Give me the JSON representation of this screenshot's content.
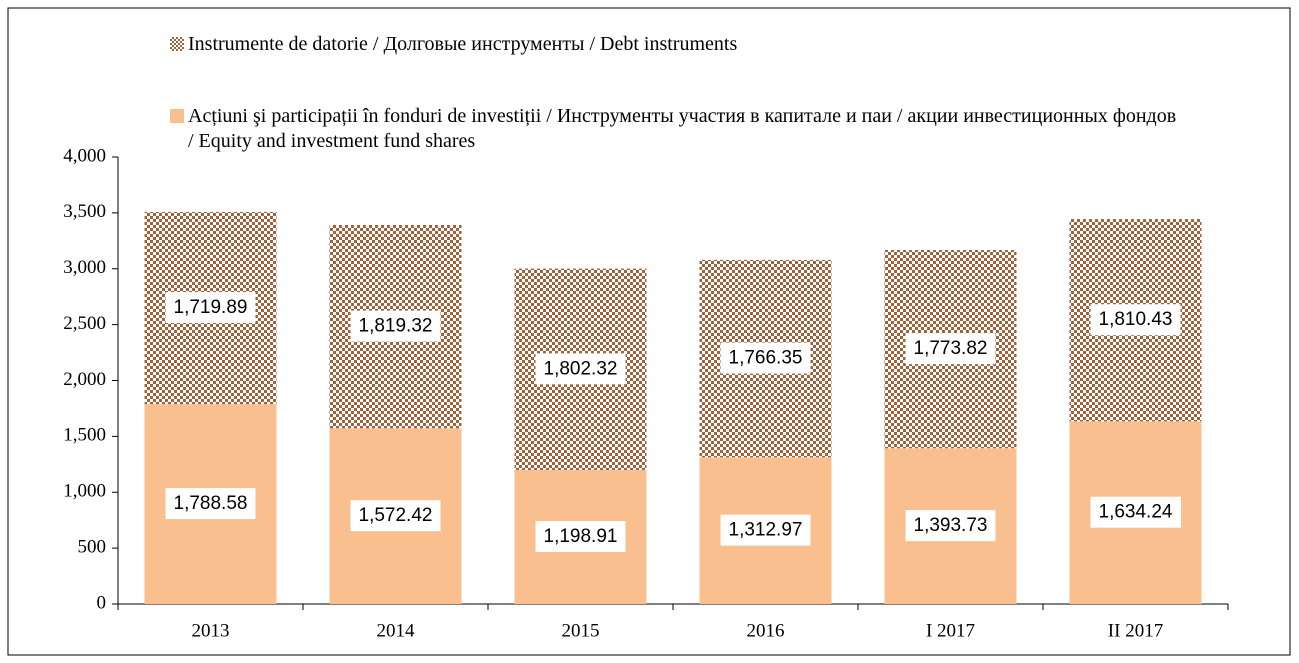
{
  "chart_data": {
    "type": "stacked_bar",
    "categories": [
      "2013",
      "2014",
      "2015",
      "2016",
      "I 2017",
      "II 2017"
    ],
    "series": [
      {
        "name": "Acțiuni şi participații în fonduri de investiții / Инструменты участия в капитале и паи / акции инвестиционных фондов / Equity and investment fund shares",
        "color": "#f9bf8f",
        "pattern": "solid",
        "values": [
          1788.58,
          1572.42,
          1198.91,
          1312.97,
          1393.73,
          1634.24
        ],
        "value_labels": [
          "1,788.58",
          "1,572.42",
          "1,198.91",
          "1,312.97",
          "1,393.73",
          "1,634.24"
        ]
      },
      {
        "name": "Instrumente de datorie / Долговые инструменты / Debt instruments",
        "color": "#a0623a",
        "pattern": "dots",
        "values": [
          1719.89,
          1819.32,
          1802.32,
          1766.35,
          1773.82,
          1810.43
        ],
        "value_labels": [
          "1,719.89",
          "1,819.32",
          "1,802.32",
          "1,766.35",
          "1,773.82",
          "1,810.43"
        ]
      }
    ],
    "ylim": [
      0,
      4000
    ],
    "yticks": [
      0,
      500,
      {
        "value": 1000,
        "label": "1,000"
      },
      {
        "value": 1500,
        "label": "1,500"
      },
      {
        "value": 2000,
        "label": "2,000"
      },
      {
        "value": 2500,
        "label": "2,500"
      },
      {
        "value": 3000,
        "label": "3,000"
      },
      {
        "value": 3500,
        "label": "3,500"
      },
      {
        "value": 4000,
        "label": "4,000"
      }
    ],
    "grid": false
  }
}
